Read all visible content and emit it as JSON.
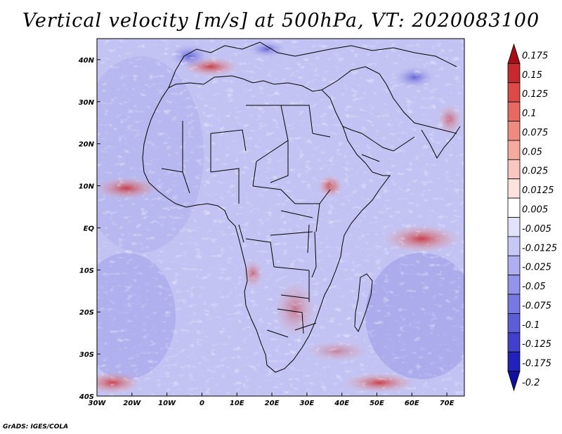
{
  "title": "Vertical velocity [m/s] at 500hPa, VT: 2020083100",
  "credit": "GrADS: IGES/COLA",
  "map": {
    "lon_range": [
      -30,
      75
    ],
    "lat_range": [
      -40,
      45
    ],
    "lat_labels": [
      "40N",
      "30N",
      "20N",
      "10N",
      "EQ",
      "10S",
      "20S",
      "30S",
      "40S"
    ],
    "lat_values": [
      40,
      30,
      20,
      10,
      0,
      -10,
      -20,
      -30,
      -40
    ],
    "lon_labels": [
      "30W",
      "20W",
      "10W",
      "0",
      "10E",
      "20E",
      "30E",
      "40E",
      "50E",
      "60E",
      "70E"
    ],
    "lon_values": [
      -30,
      -20,
      -10,
      0,
      10,
      20,
      30,
      40,
      50,
      60,
      70
    ]
  },
  "colorbar": {
    "levels": [
      "0.175",
      "0.15",
      "0.125",
      "0.1",
      "0.075",
      "0.05",
      "0.025",
      "0.0125",
      "0.005",
      "-0.005",
      "-0.0125",
      "-0.025",
      "-0.05",
      "-0.075",
      "-0.1",
      "-0.125",
      "-0.175",
      "-0.2"
    ],
    "colors": [
      "#a50f15",
      "#c62a2f",
      "#db4a47",
      "#e66a62",
      "#ef8a80",
      "#f5a99f",
      "#f9c7bf",
      "#fce2dc",
      "#ffffff",
      "#e2e2fb",
      "#c8c8f6",
      "#aeaef0",
      "#9393ea",
      "#7878e2",
      "#5d5dd8",
      "#4040cc",
      "#2222bb",
      "#1010a0"
    ]
  }
}
